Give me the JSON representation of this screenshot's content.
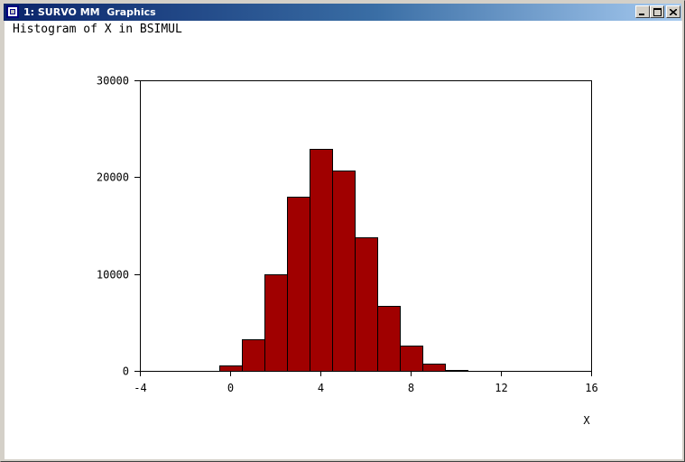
{
  "window": {
    "title": "1: SURVO MM  Graphics"
  },
  "controls": {
    "minimize": "minimize",
    "maximize": "maximize",
    "close": "close"
  },
  "colors": {
    "bar_fill": "#a00000",
    "bar_stroke": "#000000",
    "titlebar_start": "#0a246a",
    "titlebar_end": "#a6caf0"
  },
  "chart_data": {
    "type": "bar",
    "title": "Histogram of X in BSIMUL",
    "xlabel": "X",
    "ylabel": "",
    "xlim": [
      -4,
      16
    ],
    "ylim": [
      0,
      30000
    ],
    "x_ticks": [
      "-4",
      "0",
      "4",
      "8",
      "12",
      "16"
    ],
    "y_ticks": [
      "0",
      "10000",
      "20000",
      "30000"
    ],
    "bin_width": 1,
    "bins": [
      {
        "x0": -0.5,
        "value": 550
      },
      {
        "x0": 0.5,
        "value": 3300
      },
      {
        "x0": 1.5,
        "value": 9950
      },
      {
        "x0": 2.5,
        "value": 18000
      },
      {
        "x0": 3.5,
        "value": 22950
      },
      {
        "x0": 4.5,
        "value": 20650
      },
      {
        "x0": 5.5,
        "value": 13750
      },
      {
        "x0": 6.5,
        "value": 6750
      },
      {
        "x0": 7.5,
        "value": 2600
      },
      {
        "x0": 8.5,
        "value": 700
      },
      {
        "x0": 9.5,
        "value": 100
      }
    ],
    "grid": false
  }
}
